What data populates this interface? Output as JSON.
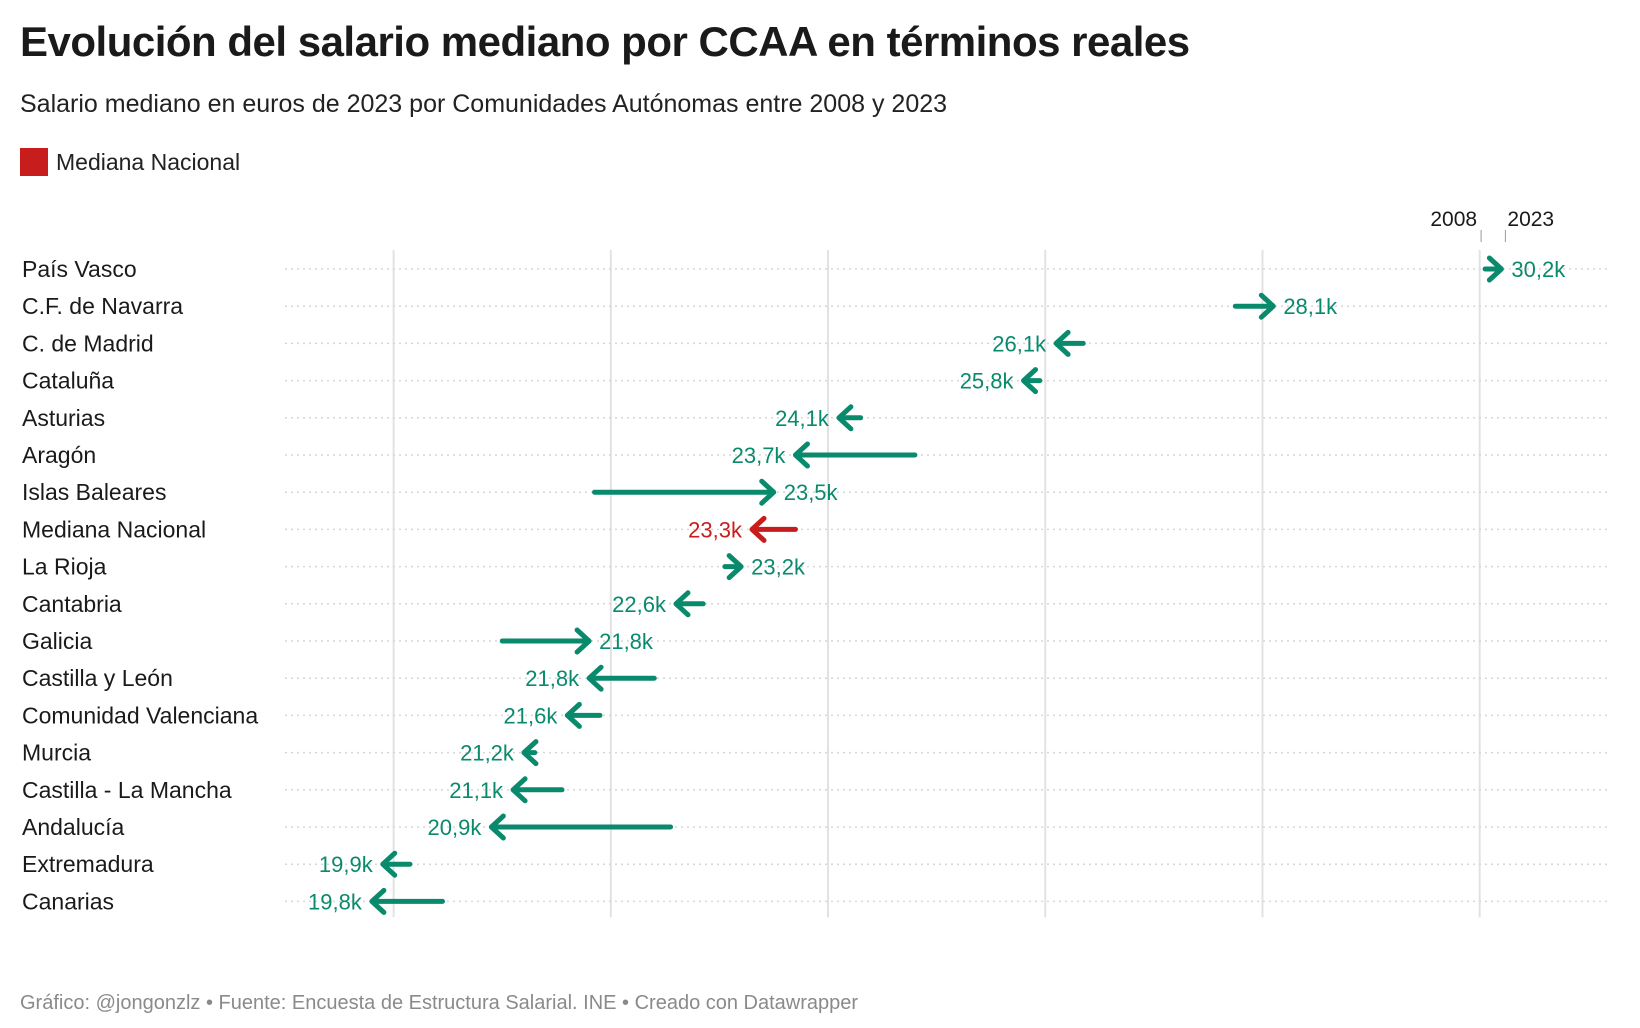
{
  "title": "Evolución del salario mediano por CCAA en términos reales",
  "subtitle": "Salario mediano en euros de 2023 por Comunidades Autónomas entre 2008 y 2023",
  "legend": {
    "label": "Mediana Nacional",
    "color": "#c71e1d"
  },
  "footer": "Gráfico: @jongonzlz • Fuente: Encuesta de Estructura Salarial. INE • Creado con Datawrapper",
  "colors": {
    "region": "#0a8a6c",
    "national": "#c71e1d"
  },
  "chart_data": {
    "type": "arrow",
    "start_label": "2008",
    "end_label": "2023",
    "xlim": [
      19000,
      31200
    ],
    "x_ticks": [
      {
        "value": 20000,
        "label": "20k"
      },
      {
        "value": 22000,
        "label": "22k"
      },
      {
        "value": 24000,
        "label": "24k"
      },
      {
        "value": 26000,
        "label": "26k"
      },
      {
        "value": 28000,
        "label": "28k"
      },
      {
        "value": 30000,
        "label": "30k"
      }
    ],
    "rows": [
      {
        "name": "País Vasco",
        "start": 30050,
        "end": 30200,
        "label": "30,2k",
        "national": false
      },
      {
        "name": "C.F. de Navarra",
        "start": 27750,
        "end": 28100,
        "label": "28,1k",
        "national": false
      },
      {
        "name": "C. de Madrid",
        "start": 26350,
        "end": 26100,
        "label": "26,1k",
        "national": false
      },
      {
        "name": "Cataluña",
        "start": 25950,
        "end": 25800,
        "label": "25,8k",
        "national": false
      },
      {
        "name": "Asturias",
        "start": 24300,
        "end": 24100,
        "label": "24,1k",
        "national": false
      },
      {
        "name": "Aragón",
        "start": 24800,
        "end": 23700,
        "label": "23,7k",
        "national": false
      },
      {
        "name": "Islas Baleares",
        "start": 21850,
        "end": 23500,
        "label": "23,5k",
        "national": false
      },
      {
        "name": "Mediana Nacional",
        "start": 23700,
        "end": 23300,
        "label": "23,3k",
        "national": true
      },
      {
        "name": "La Rioja",
        "start": 23050,
        "end": 23200,
        "label": "23,2k",
        "national": false
      },
      {
        "name": "Cantabria",
        "start": 22850,
        "end": 22600,
        "label": "22,6k",
        "national": false
      },
      {
        "name": "Galicia",
        "start": 21000,
        "end": 21800,
        "label": "21,8k",
        "national": false
      },
      {
        "name": "Castilla y León",
        "start": 22400,
        "end": 21800,
        "label": "21,8k",
        "national": false
      },
      {
        "name": "Comunidad Valenciana",
        "start": 21900,
        "end": 21600,
        "label": "21,6k",
        "national": false
      },
      {
        "name": "Murcia",
        "start": 21300,
        "end": 21200,
        "label": "21,2k",
        "national": false
      },
      {
        "name": "Castilla - La Mancha",
        "start": 21550,
        "end": 21100,
        "label": "21,1k",
        "national": false
      },
      {
        "name": "Andalucía",
        "start": 22550,
        "end": 20900,
        "label": "20,9k",
        "national": false
      },
      {
        "name": "Extremadura",
        "start": 20150,
        "end": 19900,
        "label": "19,9k",
        "national": false
      },
      {
        "name": "Canarias",
        "start": 20450,
        "end": 19800,
        "label": "19,8k",
        "national": false
      }
    ]
  }
}
